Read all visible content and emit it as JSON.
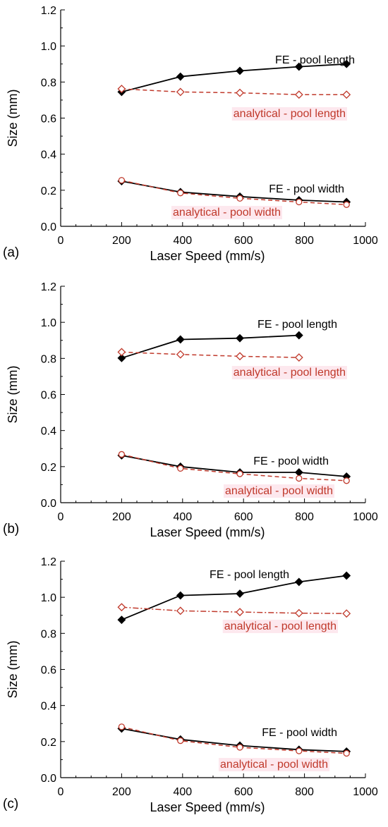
{
  "chart_data": [
    {
      "type": "line",
      "panel_label": "(a)",
      "xlabel": "Laser Speed (mm/s)",
      "ylabel": "Size (mm)",
      "xlim": [
        0,
        1000
      ],
      "ylim": [
        0,
        1.2
      ],
      "xticks": [
        "0",
        "200",
        "400",
        "600",
        "800",
        "1000"
      ],
      "yticks": [
        "0.0",
        "0.2",
        "0.4",
        "0.6",
        "0.8",
        "1.0",
        "1.2"
      ],
      "grid": false,
      "series": [
        {
          "name": "FE - pool length",
          "color": "#000000",
          "style": "solid",
          "marker": "diamond-filled",
          "x": [
            200,
            393,
            588,
            782,
            938
          ],
          "y": [
            0.745,
            0.83,
            0.862,
            0.885,
            0.9
          ]
        },
        {
          "name": "analytical - pool length",
          "color": "#c0392b",
          "style": "dashed",
          "marker": "diamond-open",
          "x": [
            200,
            393,
            588,
            782,
            938
          ],
          "y": [
            0.762,
            0.745,
            0.74,
            0.73,
            0.73
          ]
        },
        {
          "name": "FE - pool width",
          "color": "#000000",
          "style": "solid",
          "marker": "diamond-filled",
          "x": [
            200,
            393,
            588,
            782,
            938
          ],
          "y": [
            0.25,
            0.19,
            0.165,
            0.145,
            0.135
          ]
        },
        {
          "name": "analytical - pool width",
          "color": "#c0392b",
          "style": "dashed",
          "marker": "circle-open",
          "x": [
            200,
            393,
            588,
            782,
            938
          ],
          "y": [
            0.255,
            0.185,
            0.155,
            0.135,
            0.12
          ]
        }
      ]
    },
    {
      "type": "line",
      "panel_label": "(b)",
      "xlabel": "Laser Speed (mm/s)",
      "ylabel": "Size (mm)",
      "xlim": [
        0,
        1000
      ],
      "ylim": [
        0,
        1.2
      ],
      "xticks": [
        "0",
        "200",
        "400",
        "600",
        "800",
        "1000"
      ],
      "yticks": [
        "0.0",
        "0.2",
        "0.4",
        "0.6",
        "0.8",
        "1.0",
        "1.2"
      ],
      "grid": false,
      "series": [
        {
          "name": "FE - pool length",
          "color": "#000000",
          "style": "solid",
          "marker": "diamond-filled",
          "x": [
            200,
            393,
            588,
            782
          ],
          "y": [
            0.802,
            0.905,
            0.912,
            0.928
          ]
        },
        {
          "name": "analytical - pool length",
          "color": "#c0392b",
          "style": "dashed",
          "marker": "diamond-open",
          "x": [
            200,
            393,
            588,
            782
          ],
          "y": [
            0.835,
            0.822,
            0.812,
            0.805
          ]
        },
        {
          "name": "FE - pool width",
          "color": "#000000",
          "style": "solid",
          "marker": "diamond-filled",
          "x": [
            200,
            393,
            588,
            782,
            938
          ],
          "y": [
            0.262,
            0.2,
            0.168,
            0.168,
            0.145
          ]
        },
        {
          "name": "analytical - pool width",
          "color": "#c0392b",
          "style": "dashed",
          "marker": "circle-open",
          "x": [
            200,
            393,
            588,
            782,
            938
          ],
          "y": [
            0.268,
            0.19,
            0.16,
            0.135,
            0.122
          ]
        }
      ]
    },
    {
      "type": "line",
      "panel_label": "(c)",
      "xlabel": "Laser Speed (mm/s)",
      "ylabel": "Size (mm)",
      "xlim": [
        0,
        1000
      ],
      "ylim": [
        0,
        1.2
      ],
      "xticks": [
        "0",
        "200",
        "400",
        "600",
        "800",
        "1000"
      ],
      "yticks": [
        "0.0",
        "0.2",
        "0.4",
        "0.6",
        "0.8",
        "1.0",
        "1.2"
      ],
      "grid": false,
      "series": [
        {
          "name": "FE - pool length",
          "color": "#000000",
          "style": "solid",
          "marker": "diamond-filled",
          "x": [
            200,
            393,
            588,
            782,
            938
          ],
          "y": [
            0.875,
            1.01,
            1.02,
            1.085,
            1.12
          ]
        },
        {
          "name": "analytical - pool length",
          "color": "#c0392b",
          "style": "dashdot",
          "marker": "diamond-open",
          "x": [
            200,
            393,
            588,
            782,
            938
          ],
          "y": [
            0.945,
            0.925,
            0.918,
            0.912,
            0.91
          ]
        },
        {
          "name": "FE - pool width",
          "color": "#000000",
          "style": "solid",
          "marker": "diamond-filled",
          "x": [
            200,
            393,
            588,
            782,
            938
          ],
          "y": [
            0.272,
            0.212,
            0.178,
            0.155,
            0.145
          ]
        },
        {
          "name": "analytical - pool width",
          "color": "#c0392b",
          "style": "dashed",
          "marker": "circle-open",
          "x": [
            200,
            393,
            588,
            782,
            938
          ],
          "y": [
            0.282,
            0.205,
            0.168,
            0.148,
            0.135
          ]
        }
      ]
    }
  ]
}
